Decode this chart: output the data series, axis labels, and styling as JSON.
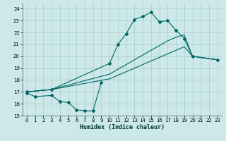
{
  "xlabel": "Humidex (Indice chaleur)",
  "bg_color": "#cce8e8",
  "grid_color": "#aacccc",
  "line_color": "#006666",
  "xlim": [
    -0.5,
    23.5
  ],
  "ylim": [
    15,
    24.5
  ],
  "yticks": [
    15,
    16,
    17,
    18,
    19,
    20,
    21,
    22,
    23,
    24
  ],
  "xticks": [
    0,
    1,
    2,
    3,
    4,
    5,
    6,
    7,
    8,
    9,
    10,
    11,
    12,
    13,
    14,
    15,
    16,
    17,
    18,
    19,
    20,
    21,
    22,
    23
  ],
  "curve1_x": [
    0,
    1,
    3,
    4,
    5,
    6,
    7,
    8,
    9
  ],
  "curve1_y": [
    16.9,
    16.6,
    16.7,
    16.2,
    16.1,
    15.5,
    15.4,
    15.4,
    17.8
  ],
  "curve2_x": [
    0,
    3,
    10,
    11,
    12,
    13,
    14,
    15,
    16,
    17,
    18,
    19,
    20,
    23
  ],
  "curve2_y": [
    17.0,
    17.2,
    19.4,
    21.0,
    21.9,
    23.1,
    23.35,
    23.7,
    22.9,
    23.0,
    22.2,
    21.5,
    20.0,
    19.7
  ],
  "curve3_x": [
    0,
    3,
    10,
    11,
    12,
    13,
    14,
    15,
    16,
    17,
    18,
    19,
    20,
    23
  ],
  "curve3_y": [
    17.0,
    17.2,
    18.5,
    18.9,
    19.3,
    19.7,
    20.1,
    20.5,
    20.9,
    21.3,
    21.6,
    21.8,
    20.0,
    19.7
  ],
  "curve4_x": [
    0,
    3,
    10,
    11,
    12,
    13,
    14,
    15,
    16,
    17,
    18,
    19,
    20,
    23
  ],
  "curve4_y": [
    17.0,
    17.2,
    18.1,
    18.4,
    18.7,
    19.0,
    19.3,
    19.6,
    19.9,
    20.2,
    20.5,
    20.8,
    20.0,
    19.7
  ]
}
